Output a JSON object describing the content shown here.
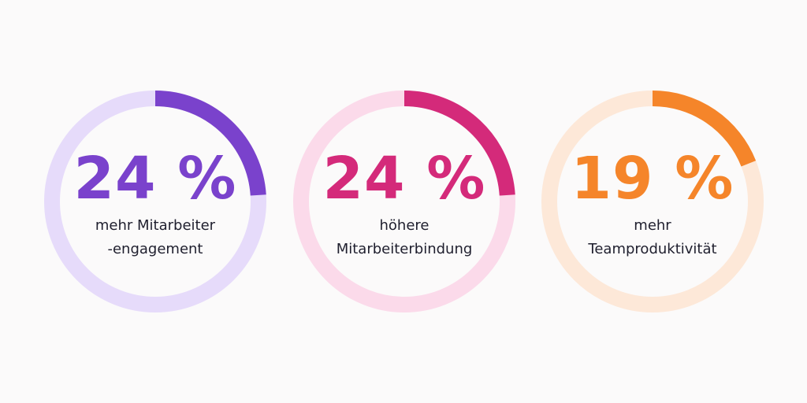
{
  "stats": [
    {
      "value": "24 %",
      "progress": 0.24,
      "label_line1": "mehr Mitarbeiter",
      "label_line2": "-engagement",
      "accent_color": "#7a42cc",
      "track_color": "#e6dbfa"
    },
    {
      "value": "24 %",
      "progress": 0.24,
      "label_line1": "höhere",
      "label_line2": "Mitarbeiterbindung",
      "accent_color": "#d42a7a",
      "track_color": "#fbdaea"
    },
    {
      "value": "19 %",
      "progress": 0.19,
      "label_line1": "mehr",
      "label_line2": "Teamproduktivität",
      "accent_color": "#f5852a",
      "track_color": "#fde8d8"
    }
  ]
}
